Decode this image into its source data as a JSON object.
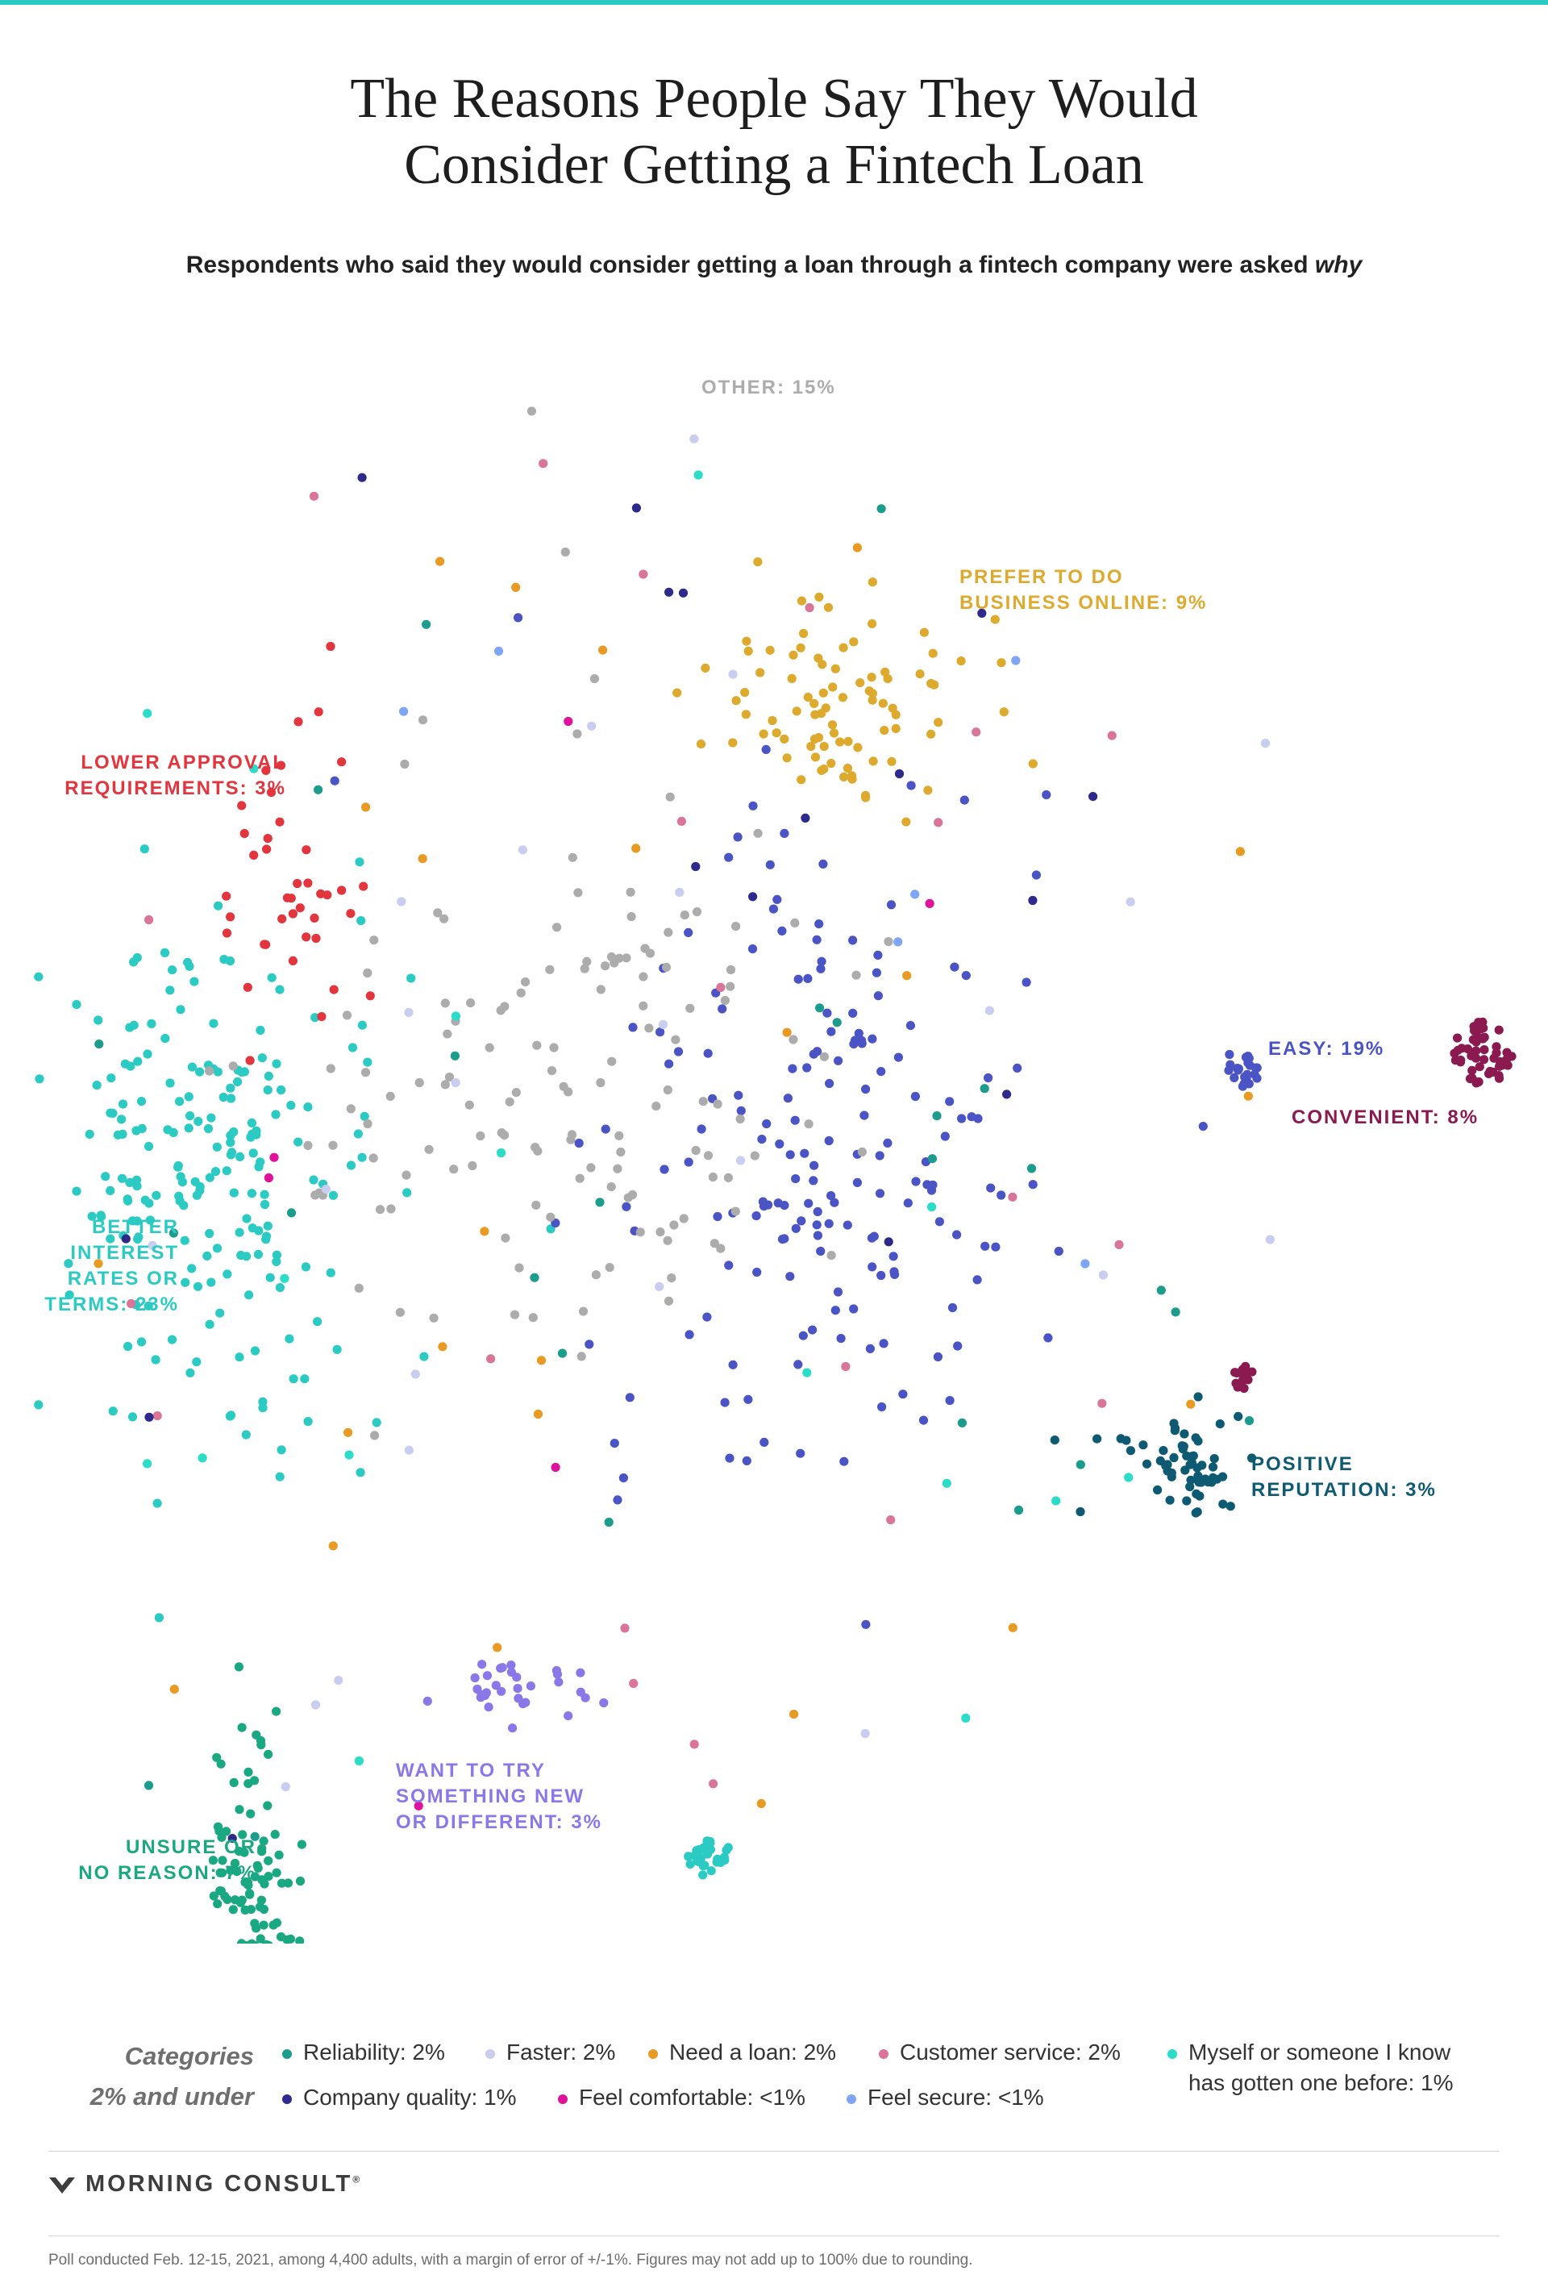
{
  "title": {
    "line1": "The Reasons People Say They Would",
    "line2": "Consider Getting a Fintech Loan"
  },
  "subtitle": {
    "main": "Respondents who said they would consider getting a loan through a fintech company were asked ",
    "emphasis": "why"
  },
  "colors": {
    "other": "#acacac",
    "online": "#ddaa2e",
    "lower_approval": "#e3353d",
    "better_rates": "#2bcbc4",
    "easy": "#4a54c4",
    "convenient": "#8a1a4f",
    "positive_reputation": "#0e5a72",
    "want_to_try": "#8b78e8",
    "unsure": "#1aa883",
    "reliability": "#1b9c8c",
    "faster": "#c9cdf0",
    "need_a_loan": "#e89a23",
    "customer_service": "#d87599",
    "myself_or_someone": "#2bdcc8",
    "company_quality": "#2d2a8c",
    "feel_comfortable": "#e0119a",
    "feel_secure": "#7fa6f4"
  },
  "chart_data": {
    "type": "scatter",
    "title": "The Reasons People Say They Would Consider Getting a Fintech Loan",
    "description_printed": "Respondents who said they would consider getting a loan through a fintech company were asked why",
    "series": [
      {
        "name": "BETTER INTEREST RATES OR TERMS",
        "value_pct": 23,
        "color": "better_rates",
        "center": [
          255,
          1040
        ],
        "spread": [
          220,
          330
        ],
        "n": 205,
        "label_lines": [
          "BETTER",
          "INTEREST",
          "RATES OR",
          "TERMS: 23%"
        ],
        "label_align": "right",
        "label_pos": [
          222,
          1086
        ]
      },
      {
        "name": "EASY",
        "value_pct": 19,
        "color": "easy",
        "center": [
          1035,
          1010
        ],
        "spread": [
          290,
          380
        ],
        "n": 175,
        "label_lines": [
          "EASY: 19%"
        ],
        "label_align": "left",
        "label_pos": [
          1573,
          865
        ]
      },
      {
        "name": "OTHER",
        "value_pct": 15,
        "color": "other",
        "center": [
          700,
          900
        ],
        "spread": [
          360,
          400
        ],
        "n": 140,
        "label_lines": [
          "OTHER: 15%"
        ],
        "label_align": "left",
        "label_pos": [
          870,
          45
        ]
      },
      {
        "name": "PREFER TO DO BUSINESS ONLINE",
        "value_pct": 9,
        "color": "online",
        "center": [
          1050,
          460
        ],
        "spread": [
          170,
          140
        ],
        "n": 88,
        "label_lines": [
          "PREFER TO DO",
          "BUSINESS ONLINE: 9%"
        ],
        "label_align": "left",
        "label_pos": [
          1190,
          280
        ]
      },
      {
        "name": "CONVENIENT",
        "value_pct": 8,
        "color": "convenient",
        "center": [
          1835,
          885
        ],
        "spread": [
          38,
          45
        ],
        "n": 70,
        "label_lines": [
          "CONVENIENT: 8%"
        ],
        "label_align": "left",
        "label_pos": [
          1602,
          950
        ]
      },
      {
        "name": "UNSURE OR NO REASON",
        "value_pct": 7,
        "color": "unsure",
        "center": [
          300,
          1950
        ],
        "spread": [
          60,
          200
        ],
        "n": 68,
        "label_lines": [
          "UNSURE OR",
          "NO REASON: 7%"
        ],
        "label_align": "right",
        "label_pos": [
          318,
          1855
        ]
      },
      {
        "name": "LOWER APPROVAL REQUIREMENTS",
        "value_pct": 3,
        "color": "lower_approval",
        "center": [
          360,
          680
        ],
        "spread": [
          90,
          220
        ],
        "n": 40,
        "label_lines": [
          "LOWER APPROVAL",
          "REQUIREMENTS: 3%"
        ],
        "label_align": "right",
        "label_pos": [
          355,
          510
        ]
      },
      {
        "name": "POSITIVE REPUTATION",
        "value_pct": 3,
        "color": "positive_reputation",
        "center": [
          1450,
          1385
        ],
        "spread": [
          90,
          80
        ],
        "n": 40,
        "label_lines": [
          "POSITIVE",
          "REPUTATION: 3%"
        ],
        "label_align": "left",
        "label_pos": [
          1552,
          1380
        ]
      },
      {
        "name": "WANT TO TRY SOMETHING NEW OR DIFFERENT",
        "value_pct": 3,
        "color": "want_to_try",
        "center": [
          640,
          1680
        ],
        "spread": [
          90,
          40
        ],
        "n": 32,
        "label_lines": [
          "WANT TO TRY",
          "SOMETHING NEW",
          "OR DIFFERENT: 3%"
        ],
        "label_align": "left",
        "label_pos": [
          491,
          1760
        ]
      },
      {
        "name": "Reliability",
        "value_pct": "2",
        "color": "reliability",
        "n": 26,
        "spread_all": true
      },
      {
        "name": "Faster",
        "value_pct": "2",
        "color": "faster",
        "n": 24,
        "spread_all": true
      },
      {
        "name": "Need a loan",
        "value_pct": "2",
        "color": "need_a_loan",
        "n": 24,
        "spread_all": true
      },
      {
        "name": "Customer service",
        "value_pct": "2",
        "color": "customer_service",
        "n": 22,
        "spread_all": true
      },
      {
        "name": "Myself or someone I know has gotten one before",
        "value_pct": "1",
        "color": "myself_or_someone",
        "n": 16,
        "spread_all": true
      },
      {
        "name": "Company quality",
        "value_pct": "1",
        "color": "company_quality",
        "n": 16,
        "spread_all": true
      },
      {
        "name": "Feel comfortable",
        "value_pct": "<1",
        "color": "feel_comfortable",
        "n": 6,
        "spread_all": true
      },
      {
        "name": "Feel secure",
        "value_pct": "<1",
        "color": "feel_secure",
        "n": 6,
        "spread_all": true
      }
    ]
  },
  "legend": {
    "title_line1": "Categories",
    "title_line2": "2% and under",
    "items": [
      {
        "label": "Reliability: 2%",
        "color": "reliability"
      },
      {
        "label": "Faster: 2%",
        "color": "faster"
      },
      {
        "label": "Need a loan: 2%",
        "color": "need_a_loan"
      },
      {
        "label": "Customer service: 2%",
        "color": "customer_service"
      },
      {
        "label_line1": "Myself or someone I know",
        "label_line2": "has gotten one before: 1%",
        "color": "myself_or_someone"
      },
      {
        "label": "Company quality: 1%",
        "color": "company_quality"
      },
      {
        "label": "Feel comfortable: <1%",
        "color": "feel_comfortable"
      },
      {
        "label": "Feel secure: <1%",
        "color": "feel_secure"
      }
    ]
  },
  "brand": {
    "name": "MORNING CONSULT",
    "mark": "®"
  },
  "footnote": "Poll conducted Feb. 12-15, 2021, among 4,400 adults, with a margin of error of +/-1%. Figures may not add up to 100% due to rounding."
}
